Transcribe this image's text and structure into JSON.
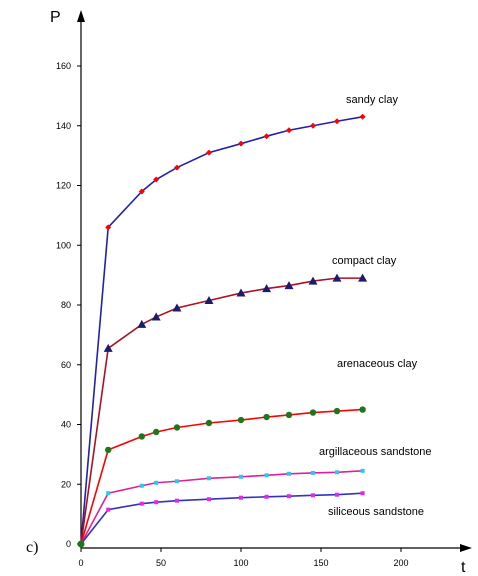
{
  "chart_data": {
    "type": "line",
    "panel_label": "c)",
    "xlabel": "t",
    "ylabel": "P",
    "xlim": [
      0,
      240
    ],
    "ylim": [
      0,
      175
    ],
    "x_ticks": [
      0,
      50,
      100,
      150,
      200
    ],
    "y_ticks": [
      0,
      20,
      40,
      60,
      80,
      100,
      120,
      140,
      160
    ],
    "grid": false,
    "x": [
      0,
      17,
      38,
      47,
      60,
      80,
      100,
      116,
      130,
      145,
      160,
      176
    ],
    "series": [
      {
        "name": "sandy clay",
        "line_color": "#2222aa",
        "marker": "diamond",
        "marker_color": "#ff0000",
        "values": [
          0,
          106,
          118,
          122,
          126,
          131,
          134,
          136.5,
          138.5,
          140,
          141.5,
          143
        ]
      },
      {
        "name": "compact clay",
        "line_color": "#aa1122",
        "marker": "triangle",
        "marker_color": "#1c1c6e",
        "values": [
          0,
          65.5,
          73.5,
          76,
          79,
          81.5,
          84,
          85.5,
          86.5,
          88,
          89,
          89
        ]
      },
      {
        "name": "arenaceous clay",
        "line_color": "#ff0000",
        "marker": "circle",
        "marker_color": "#1a7a1a",
        "values": [
          0,
          31.5,
          36,
          37.5,
          39,
          40.5,
          41.5,
          42.5,
          43.2,
          44,
          44.5,
          45
        ]
      },
      {
        "name": "argillaceous sandstone",
        "line_color": "#dd2299",
        "marker": "square",
        "marker_color": "#22ccee",
        "values": [
          0,
          17,
          19.5,
          20.5,
          21,
          22,
          22.5,
          23,
          23.5,
          23.8,
          24,
          24.5
        ]
      },
      {
        "name": "siliceous sandstone",
        "line_color": "#3333bb",
        "marker": "square",
        "marker_color": "#ee22ee",
        "values": [
          0,
          11.5,
          13.5,
          14,
          14.5,
          15,
          15.5,
          15.8,
          16,
          16.3,
          16.5,
          17
        ]
      }
    ]
  }
}
